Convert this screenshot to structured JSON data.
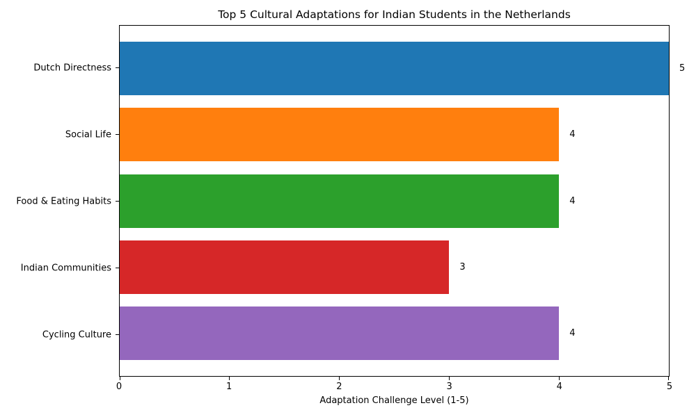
{
  "chart_data": {
    "type": "bar",
    "orientation": "horizontal",
    "title": "Top 5 Cultural Adaptations for Indian Students in the Netherlands",
    "categories": [
      "Dutch Directness",
      "Social Life",
      "Food & Eating Habits",
      "Indian Communities",
      "Cycling Culture"
    ],
    "values": [
      5,
      4,
      4,
      3,
      4
    ],
    "value_labels": [
      "5",
      "4",
      "4",
      "3",
      "4"
    ],
    "bar_colors": [
      "#1f77b4",
      "#ff7f0e",
      "#2ca02c",
      "#d62728",
      "#9467bd"
    ],
    "xlabel": "Adaptation Challenge Level (1-5)",
    "ylabel": "",
    "xlim": [
      0,
      5
    ],
    "xticks": [
      0,
      1,
      2,
      3,
      4,
      5
    ],
    "grid": false,
    "legend": "none",
    "background_color": "#ffffff",
    "text_color": "#000000",
    "axis_color": "#000000"
  }
}
